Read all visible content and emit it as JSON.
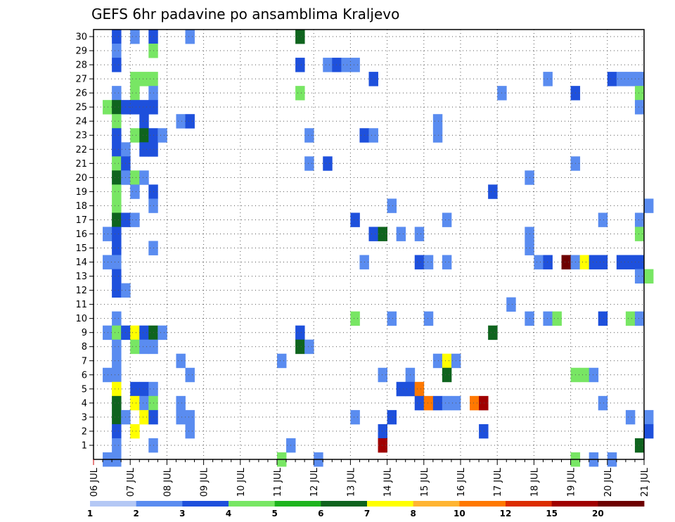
{
  "chart_data": {
    "type": "heatmap",
    "title": "GEFS 6hr padavine po ansamblima Kraljevo",
    "xlabel": "",
    "ylabel": "",
    "x_start": "06 JUL",
    "x_end": "21 JUL",
    "x_step": "6h",
    "xticks": [
      "06 JUL",
      "07 JUL",
      "08 JUL",
      "09 JUL",
      "10 JUL",
      "11 JUL",
      "12 JUL",
      "13 JUL",
      "14 JUL",
      "15 JUL",
      "16 JUL",
      "17 JUL",
      "18 JUL",
      "19 JUL",
      "20 JUL",
      "21 JUL"
    ],
    "ylim": [
      0,
      30
    ],
    "yticks": [
      1,
      2,
      3,
      4,
      5,
      6,
      7,
      8,
      9,
      10,
      11,
      12,
      13,
      14,
      15,
      16,
      17,
      18,
      19,
      20,
      21,
      22,
      23,
      24,
      25,
      26,
      27,
      28,
      29,
      30
    ],
    "grid": true,
    "colorbar": {
      "labels": [
        "1",
        "2",
        "3",
        "4",
        "5",
        "6",
        "7",
        "8",
        "10",
        "12",
        "15",
        "20"
      ],
      "colors": [
        "#b4c8f5",
        "#5a8cf0",
        "#1e50dc",
        "#78e664",
        "#1eb41e",
        "#0f641e",
        "#ffff00",
        "#ffb432",
        "#ff7800",
        "#dc2d00",
        "#a00000",
        "#6e0000"
      ]
    },
    "cells": [
      [
        2,
        30,
        2
      ],
      [
        4,
        30,
        1
      ],
      [
        6,
        30,
        2
      ],
      [
        10,
        30,
        1
      ],
      [
        22,
        30,
        5
      ],
      [
        2,
        29,
        1
      ],
      [
        6,
        29,
        3
      ],
      [
        2,
        28,
        2
      ],
      [
        22,
        28,
        2
      ],
      [
        25,
        28,
        1
      ],
      [
        26,
        28,
        2
      ],
      [
        27,
        28,
        1
      ],
      [
        28,
        28,
        1
      ],
      [
        4,
        27,
        3
      ],
      [
        5,
        27,
        3
      ],
      [
        6,
        27,
        3
      ],
      [
        30,
        27,
        2
      ],
      [
        49,
        27,
        1
      ],
      [
        56,
        27,
        2
      ],
      [
        57,
        27,
        1
      ],
      [
        58,
        27,
        1
      ],
      [
        59,
        27,
        1
      ],
      [
        2,
        26,
        1
      ],
      [
        4,
        26,
        3
      ],
      [
        6,
        26,
        1
      ],
      [
        22,
        26,
        3
      ],
      [
        44,
        26,
        1
      ],
      [
        52,
        26,
        2
      ],
      [
        59,
        26,
        3
      ],
      [
        1,
        25,
        3
      ],
      [
        2,
        25,
        5
      ],
      [
        3,
        25,
        2
      ],
      [
        4,
        25,
        2
      ],
      [
        5,
        25,
        2
      ],
      [
        6,
        25,
        2
      ],
      [
        59,
        25,
        1
      ],
      [
        2,
        24,
        3
      ],
      [
        5,
        24,
        2
      ],
      [
        9,
        24,
        1
      ],
      [
        10,
        24,
        2
      ],
      [
        37,
        24,
        1
      ],
      [
        2,
        23,
        2
      ],
      [
        4,
        23,
        3
      ],
      [
        5,
        23,
        5
      ],
      [
        6,
        23,
        2
      ],
      [
        7,
        23,
        1
      ],
      [
        23,
        23,
        1
      ],
      [
        29,
        23,
        2
      ],
      [
        30,
        23,
        1
      ],
      [
        37,
        23,
        1
      ],
      [
        2,
        22,
        2
      ],
      [
        3,
        22,
        1
      ],
      [
        5,
        22,
        2
      ],
      [
        6,
        22,
        2
      ],
      [
        2,
        21,
        3
      ],
      [
        3,
        21,
        2
      ],
      [
        23,
        21,
        1
      ],
      [
        25,
        21,
        2
      ],
      [
        52,
        21,
        1
      ],
      [
        2,
        20,
        5
      ],
      [
        3,
        20,
        1
      ],
      [
        4,
        20,
        3
      ],
      [
        5,
        20,
        1
      ],
      [
        47,
        20,
        1
      ],
      [
        2,
        19,
        3
      ],
      [
        4,
        19,
        1
      ],
      [
        6,
        19,
        2
      ],
      [
        43,
        19,
        2
      ],
      [
        2,
        18,
        3
      ],
      [
        6,
        18,
        1
      ],
      [
        32,
        18,
        1
      ],
      [
        60,
        18,
        1
      ],
      [
        2,
        17,
        5
      ],
      [
        3,
        17,
        2
      ],
      [
        4,
        17,
        1
      ],
      [
        28,
        17,
        2
      ],
      [
        38,
        17,
        1
      ],
      [
        55,
        17,
        1
      ],
      [
        59,
        17,
        1
      ],
      [
        1,
        16,
        1
      ],
      [
        2,
        16,
        2
      ],
      [
        30,
        16,
        2
      ],
      [
        31,
        16,
        5
      ],
      [
        33,
        16,
        1
      ],
      [
        35,
        16,
        1
      ],
      [
        47,
        16,
        1
      ],
      [
        59,
        16,
        3
      ],
      [
        2,
        15,
        2
      ],
      [
        6,
        15,
        1
      ],
      [
        47,
        15,
        1
      ],
      [
        1,
        14,
        1
      ],
      [
        2,
        14,
        1
      ],
      [
        29,
        14,
        1
      ],
      [
        35,
        14,
        2
      ],
      [
        36,
        14,
        1
      ],
      [
        38,
        14,
        1
      ],
      [
        48,
        14,
        1
      ],
      [
        49,
        14,
        2
      ],
      [
        51,
        14,
        11
      ],
      [
        52,
        14,
        1
      ],
      [
        53,
        14,
        6
      ],
      [
        54,
        14,
        2
      ],
      [
        55,
        14,
        2
      ],
      [
        57,
        14,
        2
      ],
      [
        58,
        14,
        2
      ],
      [
        59,
        14,
        2
      ],
      [
        2,
        13,
        2
      ],
      [
        59,
        13,
        1
      ],
      [
        60,
        13,
        3
      ],
      [
        2,
        12,
        2
      ],
      [
        3,
        12,
        1
      ],
      [
        45,
        11,
        1
      ],
      [
        2,
        10,
        1
      ],
      [
        28,
        10,
        3
      ],
      [
        32,
        10,
        1
      ],
      [
        36,
        10,
        1
      ],
      [
        47,
        10,
        1
      ],
      [
        49,
        10,
        1
      ],
      [
        50,
        10,
        3
      ],
      [
        55,
        10,
        2
      ],
      [
        58,
        10,
        3
      ],
      [
        59,
        10,
        1
      ],
      [
        1,
        9,
        1
      ],
      [
        2,
        9,
        3
      ],
      [
        3,
        9,
        2
      ],
      [
        4,
        9,
        6
      ],
      [
        5,
        9,
        2
      ],
      [
        6,
        9,
        5
      ],
      [
        7,
        9,
        1
      ],
      [
        22,
        9,
        2
      ],
      [
        43,
        9,
        5
      ],
      [
        2,
        8,
        1
      ],
      [
        4,
        8,
        3
      ],
      [
        5,
        8,
        1
      ],
      [
        6,
        8,
        1
      ],
      [
        22,
        8,
        5
      ],
      [
        23,
        8,
        1
      ],
      [
        2,
        7,
        1
      ],
      [
        9,
        7,
        1
      ],
      [
        20,
        7,
        1
      ],
      [
        37,
        7,
        1
      ],
      [
        38,
        7,
        6
      ],
      [
        39,
        7,
        1
      ],
      [
        1,
        6,
        1
      ],
      [
        2,
        6,
        1
      ],
      [
        10,
        6,
        1
      ],
      [
        31,
        6,
        1
      ],
      [
        34,
        6,
        1
      ],
      [
        38,
        6,
        5
      ],
      [
        52,
        6,
        3
      ],
      [
        53,
        6,
        3
      ],
      [
        54,
        6,
        1
      ],
      [
        2,
        5,
        6
      ],
      [
        4,
        5,
        2
      ],
      [
        5,
        5,
        2
      ],
      [
        6,
        5,
        1
      ],
      [
        33,
        5,
        2
      ],
      [
        34,
        5,
        2
      ],
      [
        35,
        5,
        8
      ],
      [
        2,
        4,
        5
      ],
      [
        4,
        4,
        6
      ],
      [
        5,
        4,
        1
      ],
      [
        6,
        4,
        3
      ],
      [
        9,
        4,
        1
      ],
      [
        35,
        4,
        2
      ],
      [
        36,
        4,
        8
      ],
      [
        37,
        4,
        2
      ],
      [
        38,
        4,
        1
      ],
      [
        39,
        4,
        1
      ],
      [
        41,
        4,
        8
      ],
      [
        42,
        4,
        10
      ],
      [
        55,
        4,
        1
      ],
      [
        2,
        3,
        5
      ],
      [
        3,
        3,
        1
      ],
      [
        5,
        3,
        6
      ],
      [
        6,
        3,
        2
      ],
      [
        9,
        3,
        1
      ],
      [
        10,
        3,
        1
      ],
      [
        28,
        3,
        1
      ],
      [
        32,
        3,
        2
      ],
      [
        58,
        3,
        1
      ],
      [
        60,
        3,
        1
      ],
      [
        2,
        2,
        2
      ],
      [
        4,
        2,
        6
      ],
      [
        10,
        2,
        1
      ],
      [
        31,
        2,
        2
      ],
      [
        42,
        2,
        2
      ],
      [
        60,
        2,
        2
      ],
      [
        2,
        1,
        1
      ],
      [
        6,
        1,
        1
      ],
      [
        21,
        1,
        1
      ],
      [
        31,
        1,
        10
      ],
      [
        59,
        1,
        5
      ],
      [
        1,
        0,
        1
      ],
      [
        2,
        0,
        1
      ],
      [
        20,
        0,
        3
      ],
      [
        24,
        0,
        1
      ],
      [
        52,
        0,
        3
      ],
      [
        54,
        0,
        1
      ],
      [
        56,
        0,
        1
      ]
    ]
  }
}
